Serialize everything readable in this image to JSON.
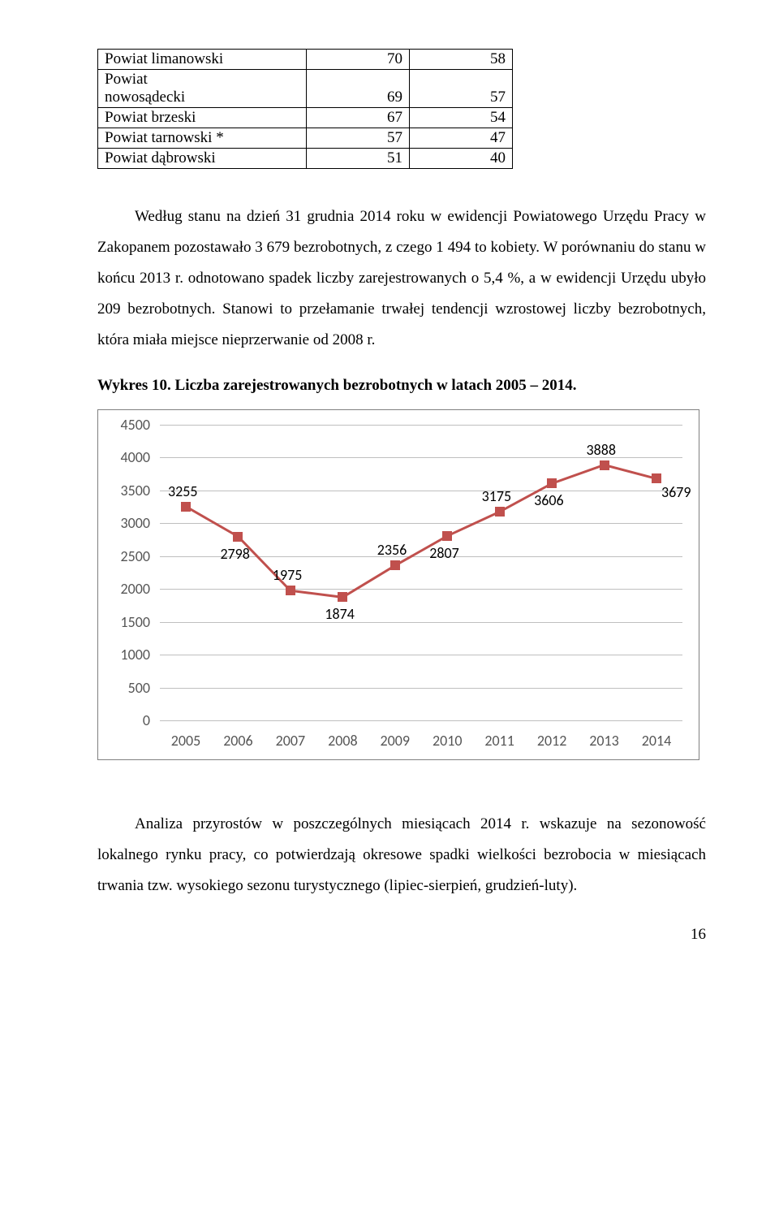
{
  "table": {
    "rows": [
      {
        "name": "Powiat limanowski",
        "c1": "70",
        "c2": "58"
      },
      {
        "name": "Powiat\nnowosądecki",
        "c1": "69",
        "c2": "57"
      },
      {
        "name": "Powiat brzeski",
        "c1": "67",
        "c2": "54"
      },
      {
        "name": "Powiat tarnowski *",
        "c1": "57",
        "c2": "47"
      },
      {
        "name": "Powiat dąbrowski",
        "c1": "51",
        "c2": "40"
      }
    ]
  },
  "paragraph1": "Według stanu na dzień 31 grudnia 2014 roku w ewidencji Powiatowego Urzędu Pracy w Zakopanem pozostawało 3 679 bezrobotnych, z czego 1 494 to kobiety. W porównaniu do stanu w końcu 2013 r. odnotowano spadek liczby zarejestrowanych o 5,4 %, a w ewidencji Urzędu ubyło 209 bezrobotnych. Stanowi to przełamanie trwałej tendencji wzrostowej liczby bezrobotnych, która miała miejsce nieprzerwanie od 2008 r.",
  "chart_title": "Wykres 10. Liczba zarejestrowanych bezrobotnych w latach 2005 – 2014.",
  "chart": {
    "x_labels": [
      "2005",
      "2006",
      "2007",
      "2008",
      "2009",
      "2010",
      "2011",
      "2012",
      "2013",
      "2014"
    ],
    "y_ticks": [
      0,
      500,
      1000,
      1500,
      2000,
      2500,
      3000,
      3500,
      4000,
      4500
    ],
    "ymax": 4500,
    "values": [
      3255,
      2798,
      1975,
      1874,
      2356,
      2807,
      3175,
      3606,
      3888,
      3679
    ],
    "label_pos": [
      "above",
      "below",
      "above",
      "below",
      "above",
      "below",
      "above",
      "below",
      "above",
      "below-right"
    ],
    "grid_color": "#bfbfbf",
    "series_color": "#c0504d",
    "marker_size": 12,
    "line_width": 3
  },
  "paragraph2": "Analiza przyrostów w poszczególnych miesiącach 2014 r. wskazuje na sezonowość lokalnego rynku pracy, co potwierdzają okresowe spadki wielkości bezrobocia w miesiącach trwania tzw. wysokiego sezonu turystycznego (lipiec-sierpień, grudzień-luty).",
  "page_number": "16"
}
